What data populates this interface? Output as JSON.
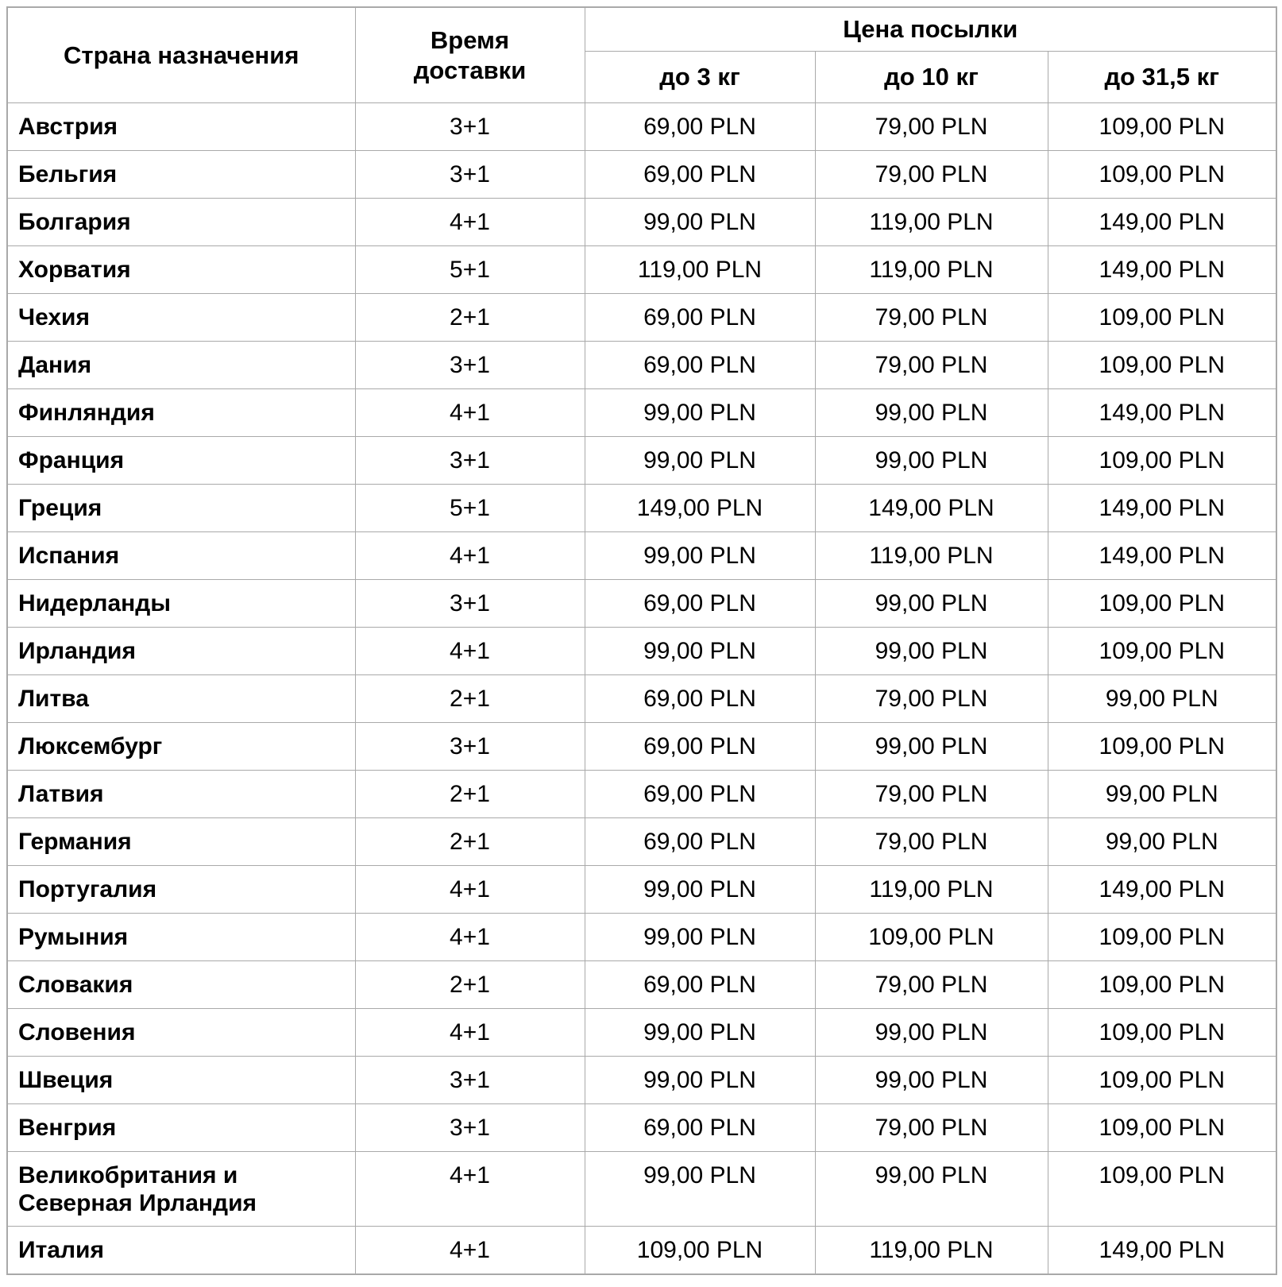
{
  "table": {
    "headers": {
      "country": "Страна назначения",
      "delivery_time": "Время доставки",
      "price_group": "Цена посылки",
      "weight_columns": [
        "до 3 кг",
        "до 10 кг",
        "до 31,5 кг"
      ]
    },
    "rows": [
      {
        "country": "Австрия",
        "time": "3+1",
        "p3": "69,00 PLN",
        "p10": "79,00 PLN",
        "p31": "109,00 PLN"
      },
      {
        "country": "Бельгия",
        "time": "3+1",
        "p3": "69,00 PLN",
        "p10": "79,00 PLN",
        "p31": "109,00 PLN"
      },
      {
        "country": "Болгария",
        "time": "4+1",
        "p3": "99,00 PLN",
        "p10": "119,00 PLN",
        "p31": "149,00 PLN"
      },
      {
        "country": "Хорватия",
        "time": "5+1",
        "p3": "119,00 PLN",
        "p10": "119,00 PLN",
        "p31": "149,00 PLN"
      },
      {
        "country": "Чехия",
        "time": "2+1",
        "p3": "69,00 PLN",
        "p10": "79,00 PLN",
        "p31": "109,00 PLN"
      },
      {
        "country": "Дания",
        "time": "3+1",
        "p3": "69,00 PLN",
        "p10": "79,00 PLN",
        "p31": "109,00 PLN"
      },
      {
        "country": "Финляндия",
        "time": "4+1",
        "p3": "99,00 PLN",
        "p10": "99,00 PLN",
        "p31": "149,00 PLN"
      },
      {
        "country": "Франция",
        "time": "3+1",
        "p3": "99,00 PLN",
        "p10": "99,00 PLN",
        "p31": "109,00 PLN"
      },
      {
        "country": "Греция",
        "time": "5+1",
        "p3": "149,00 PLN",
        "p10": "149,00 PLN",
        "p31": "149,00 PLN"
      },
      {
        "country": "Испания",
        "time": "4+1",
        "p3": "99,00 PLN",
        "p10": "119,00 PLN",
        "p31": "149,00 PLN"
      },
      {
        "country": "Нидерланды",
        "time": "3+1",
        "p3": "69,00 PLN",
        "p10": "99,00 PLN",
        "p31": "109,00 PLN"
      },
      {
        "country": "Ирландия",
        "time": "4+1",
        "p3": "99,00 PLN",
        "p10": "99,00 PLN",
        "p31": "109,00 PLN"
      },
      {
        "country": "Литва",
        "time": "2+1",
        "p3": "69,00 PLN",
        "p10": "79,00 PLN",
        "p31": "99,00 PLN"
      },
      {
        "country": "Люксембург",
        "time": "3+1",
        "p3": "69,00 PLN",
        "p10": "99,00 PLN",
        "p31": "109,00 PLN"
      },
      {
        "country": "Латвия",
        "time": "2+1",
        "p3": "69,00 PLN",
        "p10": "79,00 PLN",
        "p31": "99,00 PLN"
      },
      {
        "country": "Германия",
        "time": "2+1",
        "p3": "69,00 PLN",
        "p10": "79,00 PLN",
        "p31": "99,00 PLN"
      },
      {
        "country": "Португалия",
        "time": "4+1",
        "p3": "99,00 PLN",
        "p10": "119,00 PLN",
        "p31": "149,00 PLN"
      },
      {
        "country": "Румыния",
        "time": "4+1",
        "p3": "99,00 PLN",
        "p10": "109,00 PLN",
        "p31": "109,00 PLN"
      },
      {
        "country": "Словакия",
        "time": "2+1",
        "p3": "69,00 PLN",
        "p10": "79,00 PLN",
        "p31": "109,00 PLN"
      },
      {
        "country": "Словения",
        "time": "4+1",
        "p3": "99,00 PLN",
        "p10": "99,00 PLN",
        "p31": "109,00 PLN"
      },
      {
        "country": "Швеция",
        "time": "3+1",
        "p3": "99,00 PLN",
        "p10": "99,00 PLN",
        "p31": "109,00 PLN"
      },
      {
        "country": "Венгрия",
        "time": "3+1",
        "p3": "69,00 PLN",
        "p10": "79,00 PLN",
        "p31": "109,00 PLN"
      },
      {
        "country": "Великобритания и Северная Ирландия",
        "time": "4+1",
        "p3": "99,00 PLN",
        "p10": "99,00 PLN",
        "p31": "109,00 PLN"
      },
      {
        "country": "Италия",
        "time": "4+1",
        "p3": "109,00 PLN",
        "p10": "119,00 PLN",
        "p31": "149,00 PLN"
      }
    ]
  },
  "colors": {
    "border": "#a9a9a9",
    "text": "#000000",
    "background": "#ffffff"
  }
}
